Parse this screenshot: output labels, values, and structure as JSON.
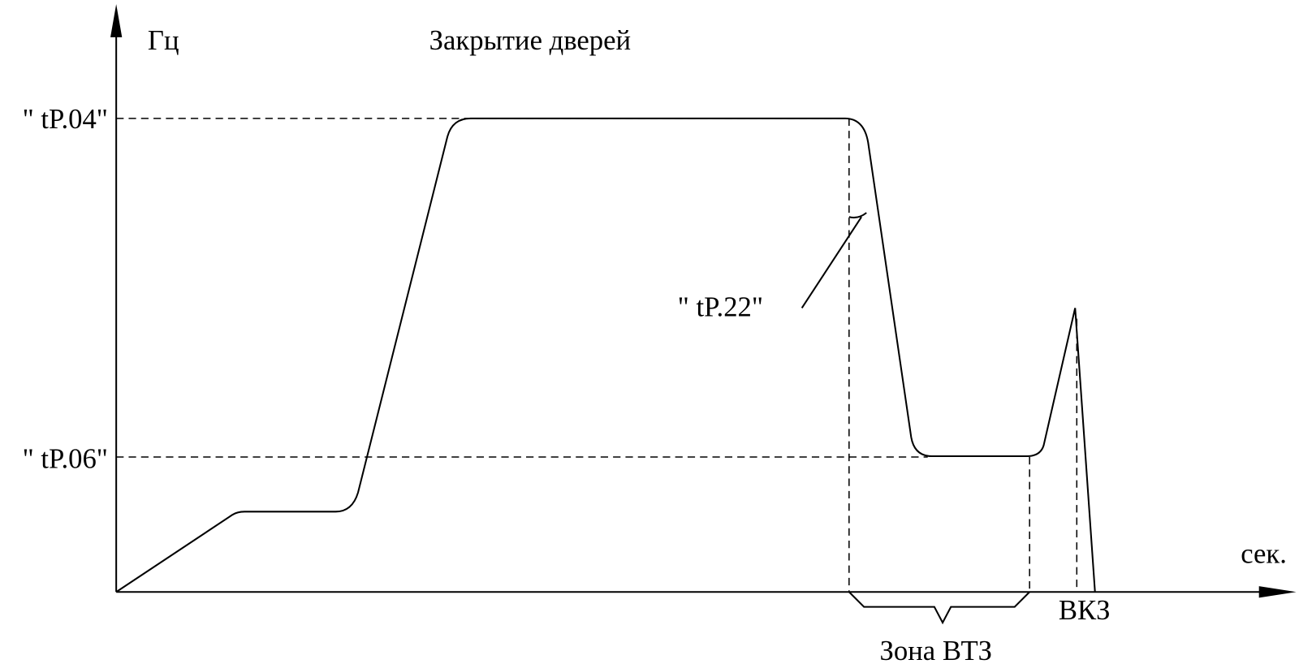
{
  "axis_y_label": "Гц",
  "title": "Закрытие дверей",
  "level_high": "\" tP.04\"",
  "level_low": "\" tP.06\"",
  "angle_label": "\" tP.22\"",
  "axis_x_label": "сек.",
  "zone_label": "Зона ВТЗ",
  "end_label": "ВКЗ"
}
